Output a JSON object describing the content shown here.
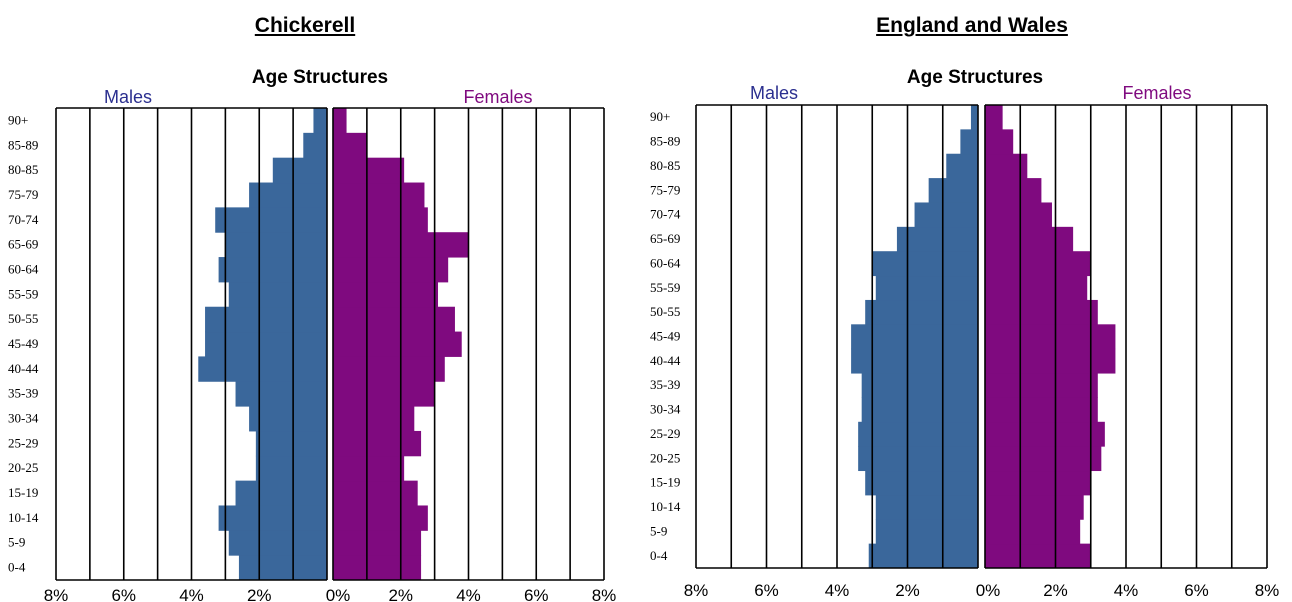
{
  "chart_data": [
    {
      "type": "bar",
      "orientation": "horizontal",
      "heading": "Chickerell",
      "title": "Age Structures",
      "categories": [
        "0-4",
        "5-9",
        "10-14",
        "15-19",
        "20-25",
        "25-29",
        "30-34",
        "35-39",
        "40-44",
        "45-49",
        "50-55",
        "55-59",
        "60-64",
        "65-69",
        "70-74",
        "75-79",
        "80-85",
        "85-89",
        "90+"
      ],
      "series": [
        {
          "name": "Males",
          "color": "#3A679B",
          "values": [
            2.6,
            2.9,
            3.2,
            2.7,
            2.1,
            2.1,
            2.3,
            2.7,
            3.8,
            3.6,
            3.6,
            2.9,
            3.2,
            3.0,
            3.3,
            2.3,
            1.6,
            0.7,
            0.4
          ]
        },
        {
          "name": "Females",
          "color": "#7F0A7F",
          "values": [
            2.6,
            2.6,
            2.8,
            2.5,
            2.1,
            2.6,
            2.4,
            3.0,
            3.3,
            3.8,
            3.6,
            3.1,
            3.4,
            4.0,
            2.8,
            2.7,
            2.1,
            1.0,
            0.4
          ]
        }
      ],
      "xlim": [
        -8,
        8
      ],
      "xticks": [
        "8%",
        "6%",
        "4%",
        "2%",
        "0%",
        "2%",
        "4%",
        "6%",
        "8%"
      ],
      "grid": true,
      "legend_placement": "top"
    },
    {
      "type": "bar",
      "orientation": "horizontal",
      "heading": "England and Wales",
      "title": "Age Structures",
      "categories": [
        "0-4",
        "5-9",
        "10-14",
        "15-19",
        "20-25",
        "25-29",
        "30-34",
        "35-39",
        "40-44",
        "45-49",
        "50-55",
        "55-59",
        "60-64",
        "65-69",
        "70-74",
        "75-79",
        "80-85",
        "85-89",
        "90+"
      ],
      "series": [
        {
          "name": "Males",
          "color": "#3A679B",
          "values": [
            3.1,
            2.9,
            2.9,
            3.2,
            3.4,
            3.4,
            3.3,
            3.3,
            3.6,
            3.6,
            3.2,
            2.9,
            3.0,
            2.3,
            1.8,
            1.4,
            0.9,
            0.5,
            0.2
          ]
        },
        {
          "name": "Females",
          "color": "#7F0A7F",
          "values": [
            3.0,
            2.7,
            2.8,
            3.0,
            3.3,
            3.4,
            3.2,
            3.2,
            3.7,
            3.7,
            3.2,
            2.9,
            3.0,
            2.5,
            1.9,
            1.6,
            1.2,
            0.8,
            0.5
          ]
        }
      ],
      "xlim": [
        -8,
        8
      ],
      "xticks": [
        "8%",
        "6%",
        "4%",
        "2%",
        "0%",
        "2%",
        "4%",
        "6%",
        "8%"
      ],
      "grid": true,
      "legend_placement": "top"
    }
  ]
}
